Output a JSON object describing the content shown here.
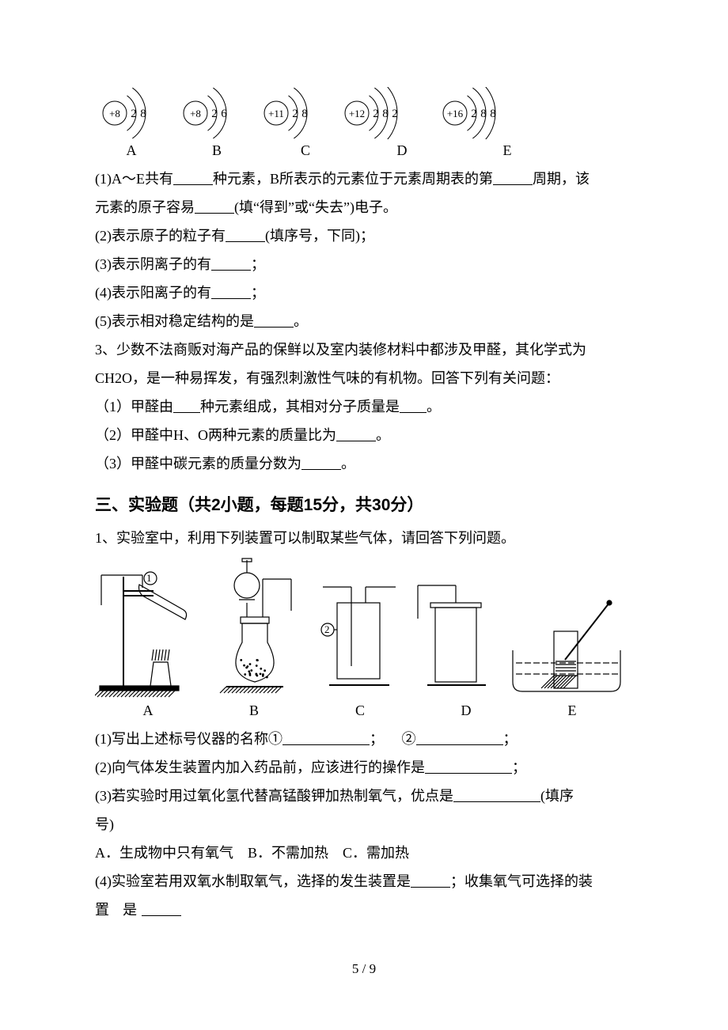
{
  "atom_diagrams": {
    "items": [
      {
        "label": "A",
        "nucleus": "+8",
        "shells": [
          "2",
          "8"
        ],
        "colors": {
          "stroke": "#000000",
          "text": "#000000"
        }
      },
      {
        "label": "B",
        "nucleus": "+8",
        "shells": [
          "2",
          "6"
        ],
        "colors": {
          "stroke": "#000000",
          "text": "#000000"
        }
      },
      {
        "label": "C",
        "nucleus": "+11",
        "shells": [
          "2",
          "8"
        ],
        "colors": {
          "stroke": "#000000",
          "text": "#000000"
        }
      },
      {
        "label": "D",
        "nucleus": "+12",
        "shells": [
          "2",
          "8",
          "2"
        ],
        "colors": {
          "stroke": "#000000",
          "text": "#000000"
        }
      },
      {
        "label": "E",
        "nucleus": "+16",
        "shells": [
          "2",
          "8",
          "8"
        ],
        "colors": {
          "stroke": "#000000",
          "text": "#000000"
        }
      }
    ],
    "style": {
      "nucleus_r": 15,
      "arc_dx": 12,
      "font_size": 16,
      "stroke_w": 1
    }
  },
  "q2": {
    "l1a": "(1)A～E共有",
    "l1b": "种元素，B所表示的元素位于元素周期表的第",
    "l1c": "周期，该",
    "l2a": "元素的原子容易",
    "l2b": "(填“得到”或“失去”)电子。",
    "p2a": "(2)表示原子的粒子有",
    "p2b": "(填序号，下同)；",
    "p3a": "(3)表示阴离子的有",
    "p4a": "(4)表示阳离子的有",
    "p5a": "(5)表示相对稳定结构的是",
    "semi": "；",
    "period": "。"
  },
  "q3": {
    "intro1": "3、少数不法商贩对海产品的保鲜以及室内装修材料中都涉及甲醛，其化学式为",
    "intro2": "CH2O，是一种易挥发，有强烈刺激性气味的有机物。回答下列有关问题：",
    "p1a": "（1）甲醛由",
    "p1b": "种元素组成，其相对分子质量是",
    "p2a": "（2）甲醛中H、O两种元素的质量比为",
    "p3a": "（3）甲醛中碳元素的质量分数为",
    "period": "。"
  },
  "sec3_title": "三、实验题（共2小题，每题15分，共30分）",
  "sec3_intro": "1、实验室中，利用下列装置可以制取某些气体，请回答下列问题。",
  "apparatus": {
    "labels": [
      "A",
      "B",
      "C",
      "D",
      "E"
    ],
    "circ1": "①",
    "circ2": "②",
    "marker2": "2",
    "stroke": "#000000",
    "fill_bg": "#ffffff",
    "hatch": "#000000"
  },
  "s3q": {
    "p1a": "(1)写出上述标号仪器的名称①",
    "p1b": "；",
    "p1c": "②",
    "p1d": "；",
    "p2a": "(2)向气体发生装置内加入药品前，应该进行的操作是",
    "p2b": "；",
    "p3a": "(3)若实验时用过氧化氢代替高锰酸钾加热制氧气，优点是",
    "p3b": "(填序",
    "p3c": "号)",
    "optA": "A．生成物中只有氧气",
    "optB": "B．不需加热",
    "optC": "C．需加热",
    "p4a": "(4)实验室若用双氧水制取氧气，选择的发生装置是",
    "p4b": "；收集氧气可选择的装",
    "p4c": "置 是"
  },
  "footer": "5 / 9"
}
